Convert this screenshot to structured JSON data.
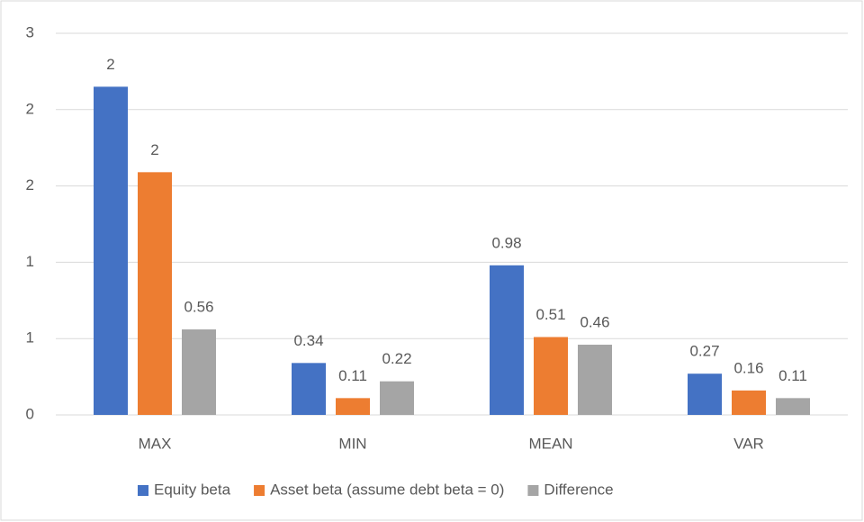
{
  "chart_data": {
    "type": "bar",
    "categories": [
      "MAX",
      "MIN",
      "MEAN",
      "VAR"
    ],
    "series": [
      {
        "name": "Equity beta",
        "color": "#4472c4",
        "values": [
          2.15,
          0.34,
          0.98,
          0.27
        ],
        "value_labels": [
          "2",
          "0.34",
          "0.98",
          "0.27"
        ]
      },
      {
        "name": "Asset beta (assume debt beta = 0)",
        "color": "#ed7d31",
        "values": [
          1.59,
          0.11,
          0.51,
          0.16
        ],
        "value_labels": [
          "2",
          "0.11",
          "0.51",
          "0.16"
        ]
      },
      {
        "name": "Difference",
        "color": "#a5a5a5",
        "values": [
          0.56,
          0.22,
          0.46,
          0.11
        ],
        "value_labels": [
          "0.56",
          "0.22",
          "0.46",
          "0.11"
        ]
      }
    ],
    "ylim": [
      0,
      2.5
    ],
    "yticks": [
      0,
      {
        "value": 0.5,
        "label": "1"
      },
      {
        "value": 1,
        "label": "1"
      },
      {
        "value": 1.5,
        "label": "2"
      },
      {
        "value": 2,
        "label": "2"
      },
      {
        "value": 2.5,
        "label": "3"
      }
    ],
    "grid": true,
    "legend": "bottom"
  }
}
